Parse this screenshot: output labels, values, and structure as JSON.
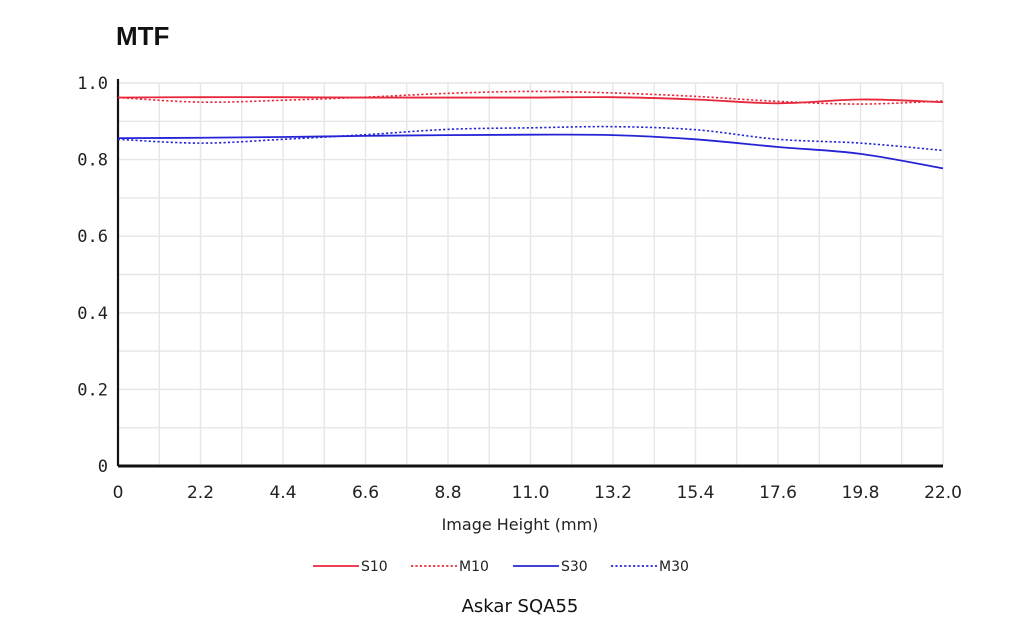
{
  "chart_data": {
    "type": "line",
    "title": "MTF",
    "xlabel": "Image Height (mm)",
    "ylabel": "",
    "caption": "Askar SQA55",
    "xlim": [
      0,
      22.0
    ],
    "ylim": [
      0,
      1.0
    ],
    "x_ticks": [
      "0",
      "2.2",
      "4.4",
      "6.6",
      "8.8",
      "11.0",
      "13.2",
      "15.4",
      "17.6",
      "19.8",
      "22.0"
    ],
    "y_ticks": [
      "0",
      "0.2",
      "0.4",
      "0.6",
      "0.8",
      "1.0"
    ],
    "grid": true,
    "legend_position": "bottom",
    "x": [
      0,
      2.2,
      4.4,
      6.6,
      8.8,
      11.0,
      13.2,
      15.4,
      17.6,
      19.8,
      22.0
    ],
    "series": [
      {
        "name": "S10",
        "color": "#e8263a",
        "dash": "solid",
        "values": [
          0.962,
          0.963,
          0.963,
          0.962,
          0.962,
          0.962,
          0.963,
          0.957,
          0.947,
          0.957,
          0.95
        ]
      },
      {
        "name": "M10",
        "color": "#e8263a",
        "dash": "dotted",
        "values": [
          0.962,
          0.95,
          0.955,
          0.963,
          0.973,
          0.978,
          0.974,
          0.965,
          0.952,
          0.945,
          0.953
        ]
      },
      {
        "name": "S30",
        "color": "#2424d6",
        "dash": "solid",
        "values": [
          0.856,
          0.857,
          0.859,
          0.862,
          0.864,
          0.865,
          0.864,
          0.853,
          0.833,
          0.815,
          0.777
        ]
      },
      {
        "name": "M30",
        "color": "#2424d6",
        "dash": "dotted",
        "values": [
          0.853,
          0.843,
          0.853,
          0.865,
          0.879,
          0.883,
          0.886,
          0.878,
          0.853,
          0.843,
          0.824
        ]
      }
    ]
  }
}
